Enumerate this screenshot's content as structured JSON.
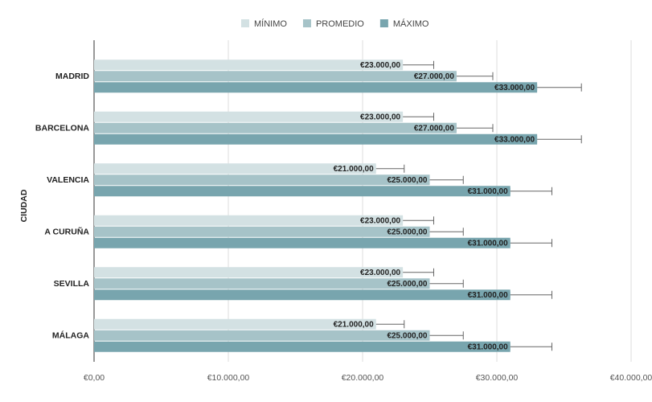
{
  "chart_data": {
    "type": "hbar",
    "y_label": "CIUDAD",
    "categories": [
      "MADRID",
      "BARCELONA",
      "VALENCIA",
      "A CURUÑA",
      "SEVILLA",
      "MÁLAGA"
    ],
    "series": [
      {
        "name": "MÍNIMO",
        "color": "#d3e1e3",
        "values": [
          23000,
          23000,
          21000,
          23000,
          23000,
          21000
        ],
        "errors": [
          2300,
          2300,
          2100,
          2300,
          2300,
          2100
        ],
        "value_labels": [
          "€23.000,00",
          "€23.000,00",
          "€21.000,00",
          "€23.000,00",
          "€23.000,00",
          "€21.000,00"
        ]
      },
      {
        "name": "PROMEDIO",
        "color": "#a6c3c8",
        "values": [
          27000,
          27000,
          25000,
          25000,
          25000,
          25000
        ],
        "errors": [
          2700,
          2700,
          2500,
          2500,
          2500,
          2500
        ],
        "value_labels": [
          "€27.000,00",
          "€27.000,00",
          "€25.000,00",
          "€25.000,00",
          "€25.000,00",
          "€25.000,00"
        ]
      },
      {
        "name": "MÁXIMO",
        "color": "#78a5ae",
        "values": [
          33000,
          33000,
          31000,
          31000,
          31000,
          31000
        ],
        "errors": [
          3300,
          3300,
          3100,
          3100,
          3100,
          3100
        ],
        "value_labels": [
          "€33.000,00",
          "€33.000,00",
          "€31.000,00",
          "€31.000,00",
          "€31.000,00",
          "€31.000,00"
        ]
      }
    ],
    "xlim": [
      0,
      40000
    ],
    "xticks": [
      {
        "value": 0,
        "label": "€0,00"
      },
      {
        "value": 10000,
        "label": "€10.000,00"
      },
      {
        "value": 20000,
        "label": "€20.000,00"
      },
      {
        "value": 30000,
        "label": "€30.000,00"
      },
      {
        "value": 40000,
        "label": "€40.000,00"
      }
    ],
    "grid": true,
    "legend": "top"
  }
}
